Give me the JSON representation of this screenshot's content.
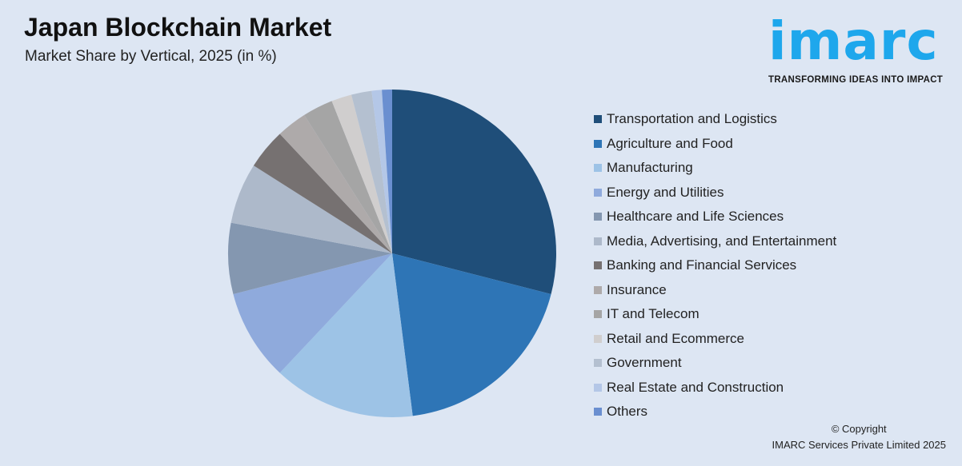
{
  "header": {
    "title": "Japan Blockchain Market",
    "subtitle": "Market Share by Vertical, 2025 (in %)"
  },
  "logo": {
    "word": "imarc",
    "tagline": "TRANSFORMING IDEAS INTO IMPACT",
    "color": "#1ea7ec"
  },
  "chart_data": {
    "type": "pie",
    "title": "Japan Blockchain Market",
    "subtitle": "Market Share by Vertical, 2025 (in %)",
    "legend_position": "right",
    "categories": [
      "Transportation and Logistics",
      "Agriculture and Food",
      "Manufacturing",
      "Energy and Utilities",
      "Healthcare and Life Sciences",
      "Media, Advertising, and Entertainment",
      "Banking and Financial Services",
      "Insurance",
      "IT and Telecom",
      "Retail and Ecommerce",
      "Government",
      "Real Estate and Construction",
      "Others"
    ],
    "values": [
      29,
      19,
      14,
      9,
      7,
      6,
      4,
      3,
      3,
      2,
      2,
      1,
      1
    ],
    "colors": [
      "#1f4e79",
      "#2e75b6",
      "#9dc3e6",
      "#8faadc",
      "#8497b0",
      "#adb9ca",
      "#767171",
      "#aeaaaa",
      "#a5a5a5",
      "#d0cece",
      "#b4c0d0",
      "#b4c7e7",
      "#6a8fd0"
    ]
  },
  "footer": {
    "copyright": "© Copyright",
    "company": "IMARC Services Private Limited 2025"
  }
}
